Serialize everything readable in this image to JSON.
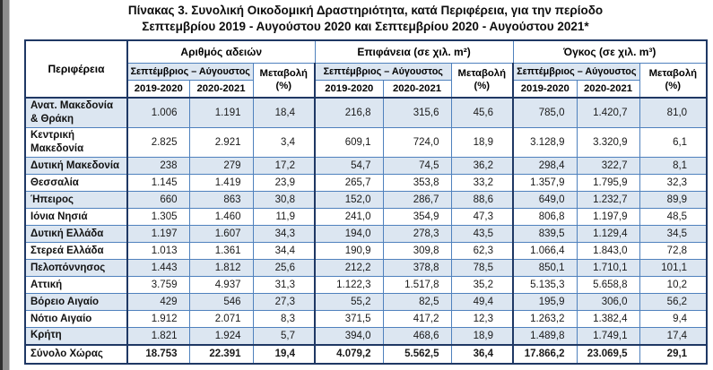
{
  "title": {
    "line1": "Πίνακας 3. Συνολική Οικοδομική Δραστηριότητα, κατά Περιφέρεια, για την περίοδο",
    "line2": "Σεπτεμβρίου 2019 - Αυγούστου 2020 και Σεπτεμβρίου 2020 - Αυγούστου 2021*"
  },
  "colors": {
    "accent_border": "#1f3864",
    "cell_border": "#4f81bd",
    "stripe_fill": "#dce6f1"
  },
  "table": {
    "region_header": "Περιφέρεια",
    "groups": [
      {
        "title": "Αριθμός αδειών"
      },
      {
        "title": "Επιφάνεια (σε χιλ. m²)"
      },
      {
        "title": "Όγκος (σε χιλ. m³)"
      }
    ],
    "subheader": {
      "period": "Σεπτέμβριος – Αύγουστος",
      "year1": "2019-2020",
      "year2": "2020-2021",
      "change_line1": "Μεταβολή",
      "change_line2": "(%)"
    },
    "rows": [
      {
        "region": "Ανατ. Μακεδονία\n& Θράκη",
        "values": [
          "1.006",
          "1.191",
          "18,4",
          "216,8",
          "315,6",
          "45,6",
          "785,0",
          "1.420,7",
          "81,0"
        ]
      },
      {
        "region": "Κεντρική\nΜακεδονία",
        "values": [
          "2.825",
          "2.921",
          "3,4",
          "609,1",
          "724,0",
          "18,9",
          "3.128,9",
          "3.320,9",
          "6,1"
        ]
      },
      {
        "region": "Δυτική Μακεδονία",
        "values": [
          "238",
          "279",
          "17,2",
          "54,7",
          "74,5",
          "36,2",
          "298,4",
          "322,7",
          "8,1"
        ]
      },
      {
        "region": "Θεσσαλία",
        "values": [
          "1.145",
          "1.419",
          "23,9",
          "265,7",
          "353,8",
          "33,2",
          "1.357,9",
          "1.795,9",
          "32,3"
        ]
      },
      {
        "region": "Ήπειρος",
        "values": [
          "660",
          "863",
          "30,8",
          "152,0",
          "286,7",
          "88,6",
          "649,0",
          "1.232,7",
          "89,9"
        ]
      },
      {
        "region": "Ιόνια Νησιά",
        "values": [
          "1.305",
          "1.460",
          "11,9",
          "241,0",
          "354,9",
          "47,3",
          "806,8",
          "1.197,9",
          "48,5"
        ]
      },
      {
        "region": "Δυτική Ελλάδα",
        "values": [
          "1.197",
          "1.607",
          "34,3",
          "194,0",
          "278,3",
          "43,5",
          "839,5",
          "1.129,4",
          "34,5"
        ]
      },
      {
        "region": "Στερεά Ελλάδα",
        "values": [
          "1.013",
          "1.361",
          "34,4",
          "190,9",
          "309,8",
          "62,3",
          "1.066,4",
          "1.843,0",
          "72,8"
        ]
      },
      {
        "region": "Πελοπόννησος",
        "values": [
          "1.443",
          "1.812",
          "25,6",
          "212,2",
          "378,8",
          "78,5",
          "850,1",
          "1.710,1",
          "101,1"
        ]
      },
      {
        "region": "Αττική",
        "values": [
          "3.759",
          "4.937",
          "31,3",
          "1.122,3",
          "1.517,8",
          "35,2",
          "5.135,3",
          "5.658,8",
          "10,2"
        ]
      },
      {
        "region": "Βόρειο Αιγαίο",
        "values": [
          "429",
          "546",
          "27,3",
          "55,2",
          "82,5",
          "49,4",
          "195,9",
          "306,0",
          "56,2"
        ]
      },
      {
        "region": "Νότιο Αιγαίο",
        "values": [
          "1.912",
          "2.071",
          "8,3",
          "371,5",
          "417,2",
          "12,3",
          "1.263,2",
          "1.382,4",
          "9,4"
        ]
      },
      {
        "region": "Κρήτη",
        "values": [
          "1.821",
          "1.924",
          "5,7",
          "394,0",
          "468,6",
          "18,9",
          "1.489,8",
          "1.749,1",
          "17,4"
        ]
      }
    ],
    "total_row": {
      "region": "Σύνολο Χώρας",
      "values": [
        "18.753",
        "22.391",
        "19,4",
        "4.079,2",
        "5.562,5",
        "36,4",
        "17.866,2",
        "23.069,5",
        "29,1"
      ]
    }
  }
}
